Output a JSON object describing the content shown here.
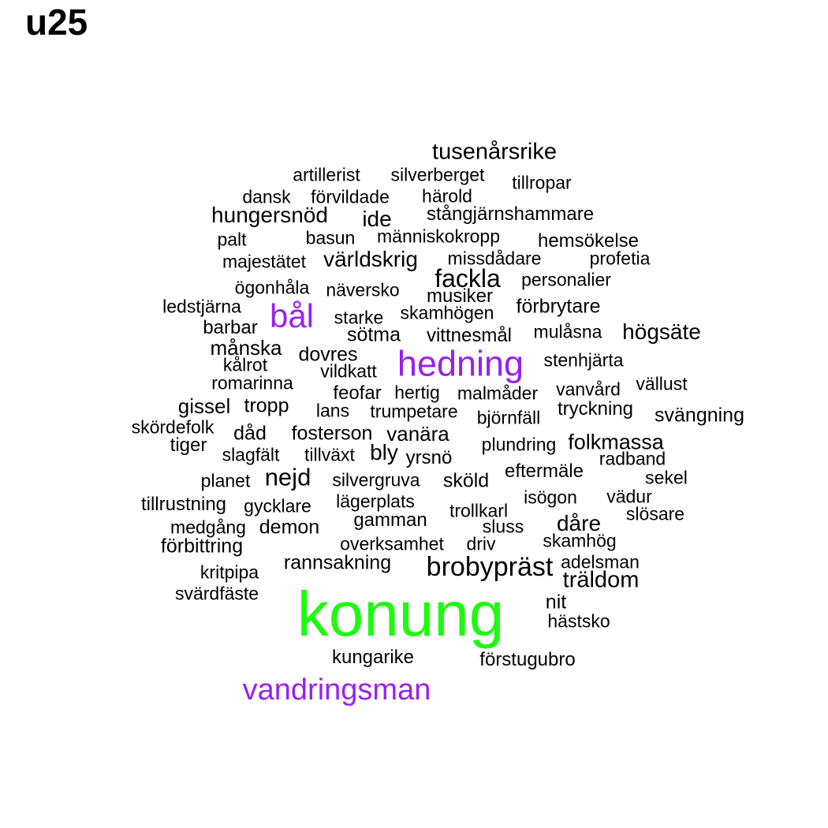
{
  "title": "u25",
  "colors": {
    "default": "#000000",
    "purple": "#9b1ff0",
    "green": "#1dfb0f"
  },
  "words": [
    {
      "text": "tusenårsrike",
      "color": "default"
    },
    {
      "text": "artillerist",
      "color": "default"
    },
    {
      "text": "silverberget",
      "color": "default"
    },
    {
      "text": "tillropar",
      "color": "default"
    },
    {
      "text": "dansk",
      "color": "default"
    },
    {
      "text": "förvildade",
      "color": "default"
    },
    {
      "text": "härold",
      "color": "default"
    },
    {
      "text": "hungersnöd",
      "color": "default"
    },
    {
      "text": "ide",
      "color": "default"
    },
    {
      "text": "stångjärnshammare",
      "color": "default"
    },
    {
      "text": "palt",
      "color": "default"
    },
    {
      "text": "basun",
      "color": "default"
    },
    {
      "text": "människokropp",
      "color": "default"
    },
    {
      "text": "hemsökelse",
      "color": "default"
    },
    {
      "text": "majestätet",
      "color": "default"
    },
    {
      "text": "världskrig",
      "color": "default"
    },
    {
      "text": "missdådare",
      "color": "default"
    },
    {
      "text": "profetia",
      "color": "default"
    },
    {
      "text": "fackla",
      "color": "default"
    },
    {
      "text": "personalier",
      "color": "default"
    },
    {
      "text": "ögonhåla",
      "color": "default"
    },
    {
      "text": "näversko",
      "color": "default"
    },
    {
      "text": "musiker",
      "color": "default"
    },
    {
      "text": "ledstjärna",
      "color": "default"
    },
    {
      "text": "bål",
      "color": "purple"
    },
    {
      "text": "förbrytare",
      "color": "default"
    },
    {
      "text": "skamhögen",
      "color": "default"
    },
    {
      "text": "starke",
      "color": "default"
    },
    {
      "text": "barbar",
      "color": "default"
    },
    {
      "text": "sötma",
      "color": "default"
    },
    {
      "text": "vittnesmål",
      "color": "default"
    },
    {
      "text": "mulåsna",
      "color": "default"
    },
    {
      "text": "högsäte",
      "color": "default"
    },
    {
      "text": "månska",
      "color": "default"
    },
    {
      "text": "dovres",
      "color": "default"
    },
    {
      "text": "hedning",
      "color": "purple"
    },
    {
      "text": "stenhjärta",
      "color": "default"
    },
    {
      "text": "kålrot",
      "color": "default"
    },
    {
      "text": "vildkatt",
      "color": "default"
    },
    {
      "text": "romarinna",
      "color": "default"
    },
    {
      "text": "vällust",
      "color": "default"
    },
    {
      "text": "feofar",
      "color": "default"
    },
    {
      "text": "hertig",
      "color": "default"
    },
    {
      "text": "malmåder",
      "color": "default"
    },
    {
      "text": "vanvård",
      "color": "default"
    },
    {
      "text": "gissel",
      "color": "default"
    },
    {
      "text": "tropp",
      "color": "default"
    },
    {
      "text": "lans",
      "color": "default"
    },
    {
      "text": "trumpetare",
      "color": "default"
    },
    {
      "text": "björnfäll",
      "color": "default"
    },
    {
      "text": "tryckning",
      "color": "default"
    },
    {
      "text": "svängning",
      "color": "default"
    },
    {
      "text": "skördefolk",
      "color": "default"
    },
    {
      "text": "dåd",
      "color": "default"
    },
    {
      "text": "fosterson",
      "color": "default"
    },
    {
      "text": "vanära",
      "color": "default"
    },
    {
      "text": "tiger",
      "color": "default"
    },
    {
      "text": "plundring",
      "color": "default"
    },
    {
      "text": "folkmassa",
      "color": "default"
    },
    {
      "text": "slagfält",
      "color": "default"
    },
    {
      "text": "tillväxt",
      "color": "default"
    },
    {
      "text": "bly",
      "color": "default"
    },
    {
      "text": "yrsnö",
      "color": "default"
    },
    {
      "text": "radband",
      "color": "default"
    },
    {
      "text": "planet",
      "color": "default"
    },
    {
      "text": "nejd",
      "color": "default"
    },
    {
      "text": "silvergruva",
      "color": "default"
    },
    {
      "text": "sköld",
      "color": "default"
    },
    {
      "text": "eftermäle",
      "color": "default"
    },
    {
      "text": "sekel",
      "color": "default"
    },
    {
      "text": "tillrustning",
      "color": "default"
    },
    {
      "text": "gycklare",
      "color": "default"
    },
    {
      "text": "lägerplats",
      "color": "default"
    },
    {
      "text": "trollkarl",
      "color": "default"
    },
    {
      "text": "isögon",
      "color": "default"
    },
    {
      "text": "vädur",
      "color": "default"
    },
    {
      "text": "medgång",
      "color": "default"
    },
    {
      "text": "demon",
      "color": "default"
    },
    {
      "text": "gamman",
      "color": "default"
    },
    {
      "text": "sluss",
      "color": "default"
    },
    {
      "text": "dåre",
      "color": "default"
    },
    {
      "text": "slösare",
      "color": "default"
    },
    {
      "text": "förbittring",
      "color": "default"
    },
    {
      "text": "overksamhet",
      "color": "default"
    },
    {
      "text": "driv",
      "color": "default"
    },
    {
      "text": "skamhög",
      "color": "default"
    },
    {
      "text": "rannsakning",
      "color": "default"
    },
    {
      "text": "brobypräst",
      "color": "default"
    },
    {
      "text": "adelsman",
      "color": "default"
    },
    {
      "text": "kritpipa",
      "color": "default"
    },
    {
      "text": "träldom",
      "color": "default"
    },
    {
      "text": "svärdfäste",
      "color": "default"
    },
    {
      "text": "konung",
      "color": "green"
    },
    {
      "text": "nit",
      "color": "default"
    },
    {
      "text": "hästsko",
      "color": "default"
    },
    {
      "text": "kungarike",
      "color": "default"
    },
    {
      "text": "förstugubro",
      "color": "default"
    },
    {
      "text": "vandringsman",
      "color": "purple"
    }
  ]
}
